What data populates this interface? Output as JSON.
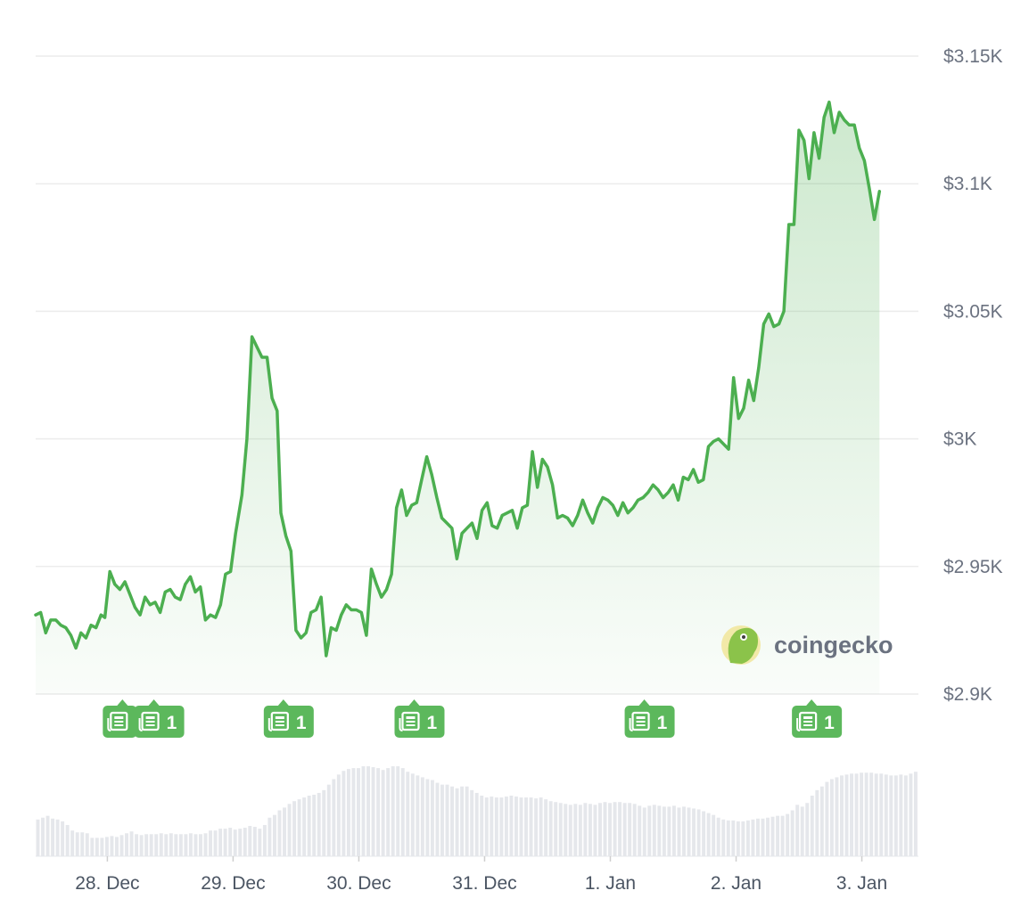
{
  "chart_data": {
    "type": "line",
    "y_axis": {
      "min": 2.9,
      "max": 3.15,
      "ticks": [
        {
          "value": 2.9,
          "label": "$2.9K"
        },
        {
          "value": 2.95,
          "label": "$2.95K"
        },
        {
          "value": 3.0,
          "label": "$3K"
        },
        {
          "value": 3.05,
          "label": "$3.05K"
        },
        {
          "value": 3.1,
          "label": "$3.1K"
        },
        {
          "value": 3.15,
          "label": "$3.15K"
        }
      ],
      "unit": "USD (thousands)",
      "position": "right"
    },
    "x_axis": {
      "start": -0.57,
      "end": 6.45,
      "ticks": [
        {
          "value": 0,
          "label": "28. Dec"
        },
        {
          "value": 1,
          "label": "29. Dec"
        },
        {
          "value": 2,
          "label": "30. Dec"
        },
        {
          "value": 3,
          "label": "31. Dec"
        },
        {
          "value": 4,
          "label": "1. Jan"
        },
        {
          "value": 5,
          "label": "2. Jan"
        },
        {
          "value": 6,
          "label": "3. Jan"
        }
      ]
    },
    "grid": "horizontal",
    "series": [
      {
        "color": "#4caf50",
        "fill": "gradient",
        "points": [
          [
            -0.57,
            2.931
          ],
          [
            -0.53,
            2.932
          ],
          [
            -0.49,
            2.924
          ],
          [
            -0.45,
            2.929
          ],
          [
            -0.41,
            2.929
          ],
          [
            -0.37,
            2.927
          ],
          [
            -0.33,
            2.926
          ],
          [
            -0.29,
            2.923
          ],
          [
            -0.25,
            2.918
          ],
          [
            -0.21,
            2.924
          ],
          [
            -0.17,
            2.922
          ],
          [
            -0.13,
            2.927
          ],
          [
            -0.09,
            2.926
          ],
          [
            -0.05,
            2.931
          ],
          [
            -0.02,
            2.93
          ],
          [
            0.02,
            2.948
          ],
          [
            0.06,
            2.943
          ],
          [
            0.1,
            2.941
          ],
          [
            0.14,
            2.944
          ],
          [
            0.18,
            2.939
          ],
          [
            0.22,
            2.934
          ],
          [
            0.26,
            2.931
          ],
          [
            0.3,
            2.938
          ],
          [
            0.34,
            2.935
          ],
          [
            0.38,
            2.936
          ],
          [
            0.42,
            2.932
          ],
          [
            0.46,
            2.94
          ],
          [
            0.5,
            2.941
          ],
          [
            0.54,
            2.938
          ],
          [
            0.58,
            2.937
          ],
          [
            0.62,
            2.943
          ],
          [
            0.66,
            2.946
          ],
          [
            0.7,
            2.94
          ],
          [
            0.74,
            2.942
          ],
          [
            0.78,
            2.929
          ],
          [
            0.82,
            2.931
          ],
          [
            0.86,
            2.93
          ],
          [
            0.9,
            2.935
          ],
          [
            0.94,
            2.947
          ],
          [
            0.98,
            2.948
          ],
          [
            1.02,
            2.963
          ],
          [
            1.07,
            2.978
          ],
          [
            1.11,
            3.0
          ],
          [
            1.15,
            3.04
          ],
          [
            1.19,
            3.036
          ],
          [
            1.23,
            3.032
          ],
          [
            1.27,
            3.032
          ],
          [
            1.31,
            3.016
          ],
          [
            1.35,
            3.011
          ],
          [
            1.38,
            2.971
          ],
          [
            1.42,
            2.962
          ],
          [
            1.46,
            2.956
          ],
          [
            1.5,
            2.925
          ],
          [
            1.54,
            2.922
          ],
          [
            1.58,
            2.924
          ],
          [
            1.62,
            2.932
          ],
          [
            1.66,
            2.933
          ],
          [
            1.7,
            2.938
          ],
          [
            1.74,
            2.915
          ],
          [
            1.78,
            2.926
          ],
          [
            1.82,
            2.925
          ],
          [
            1.86,
            2.931
          ],
          [
            1.9,
            2.935
          ],
          [
            1.94,
            2.933
          ],
          [
            1.98,
            2.933
          ],
          [
            2.02,
            2.932
          ],
          [
            2.06,
            2.923
          ],
          [
            2.1,
            2.949
          ],
          [
            2.14,
            2.943
          ],
          [
            2.18,
            2.938
          ],
          [
            2.22,
            2.941
          ],
          [
            2.26,
            2.947
          ],
          [
            2.3,
            2.973
          ],
          [
            2.34,
            2.98
          ],
          [
            2.38,
            2.97
          ],
          [
            2.42,
            2.974
          ],
          [
            2.46,
            2.975
          ],
          [
            2.5,
            2.984
          ],
          [
            2.54,
            2.993
          ],
          [
            2.58,
            2.986
          ],
          [
            2.62,
            2.977
          ],
          [
            2.66,
            2.969
          ],
          [
            2.7,
            2.967
          ],
          [
            2.74,
            2.965
          ],
          [
            2.78,
            2.953
          ],
          [
            2.82,
            2.963
          ],
          [
            2.86,
            2.965
          ],
          [
            2.9,
            2.967
          ],
          [
            2.94,
            2.961
          ],
          [
            2.98,
            2.972
          ],
          [
            3.02,
            2.975
          ],
          [
            3.06,
            2.966
          ],
          [
            3.1,
            2.965
          ],
          [
            3.14,
            2.97
          ],
          [
            3.18,
            2.971
          ],
          [
            3.22,
            2.972
          ],
          [
            3.26,
            2.965
          ],
          [
            3.3,
            2.973
          ],
          [
            3.34,
            2.974
          ],
          [
            3.38,
            2.995
          ],
          [
            3.42,
            2.981
          ],
          [
            3.46,
            2.992
          ],
          [
            3.5,
            2.989
          ],
          [
            3.54,
            2.982
          ],
          [
            3.58,
            2.969
          ],
          [
            3.62,
            2.97
          ],
          [
            3.66,
            2.969
          ],
          [
            3.7,
            2.966
          ],
          [
            3.74,
            2.97
          ],
          [
            3.78,
            2.976
          ],
          [
            3.82,
            2.971
          ],
          [
            3.86,
            2.967
          ],
          [
            3.9,
            2.973
          ],
          [
            3.94,
            2.977
          ],
          [
            3.98,
            2.976
          ],
          [
            4.02,
            2.974
          ],
          [
            4.06,
            2.97
          ],
          [
            4.1,
            2.975
          ],
          [
            4.14,
            2.971
          ],
          [
            4.18,
            2.973
          ],
          [
            4.22,
            2.976
          ],
          [
            4.26,
            2.977
          ],
          [
            4.3,
            2.979
          ],
          [
            4.34,
            2.982
          ],
          [
            4.38,
            2.98
          ],
          [
            4.42,
            2.977
          ],
          [
            4.46,
            2.979
          ],
          [
            4.5,
            2.982
          ],
          [
            4.54,
            2.976
          ],
          [
            4.58,
            2.985
          ],
          [
            4.62,
            2.984
          ],
          [
            4.66,
            2.988
          ],
          [
            4.7,
            2.983
          ],
          [
            4.74,
            2.984
          ],
          [
            4.78,
            2.997
          ],
          [
            4.82,
            2.999
          ],
          [
            4.86,
            3.0
          ],
          [
            4.9,
            2.998
          ],
          [
            4.94,
            2.996
          ],
          [
            4.98,
            3.024
          ],
          [
            5.02,
            3.008
          ],
          [
            5.06,
            3.012
          ],
          [
            5.1,
            3.023
          ],
          [
            5.14,
            3.015
          ],
          [
            5.18,
            3.028
          ],
          [
            5.22,
            3.045
          ],
          [
            5.26,
            3.049
          ],
          [
            5.3,
            3.044
          ],
          [
            5.34,
            3.045
          ],
          [
            5.38,
            3.05
          ],
          [
            5.42,
            3.084
          ],
          [
            5.46,
            3.084
          ],
          [
            5.5,
            3.121
          ],
          [
            5.54,
            3.117
          ],
          [
            5.58,
            3.102
          ],
          [
            5.62,
            3.12
          ],
          [
            5.66,
            3.11
          ],
          [
            5.7,
            3.126
          ],
          [
            5.74,
            3.132
          ],
          [
            5.78,
            3.12
          ],
          [
            5.82,
            3.128
          ],
          [
            5.86,
            3.125
          ],
          [
            5.9,
            3.123
          ],
          [
            5.94,
            3.123
          ],
          [
            5.98,
            3.114
          ],
          [
            6.02,
            3.109
          ],
          [
            6.06,
            3.098
          ],
          [
            6.1,
            3.086
          ],
          [
            6.14,
            3.097
          ]
        ]
      }
    ],
    "news_markers": [
      {
        "x": 0.12,
        "count": ""
      },
      {
        "x": 0.37,
        "count": "1"
      },
      {
        "x": 1.4,
        "count": "1"
      },
      {
        "x": 2.44,
        "count": "1"
      },
      {
        "x": 4.27,
        "count": "1"
      },
      {
        "x": 5.6,
        "count": "1"
      }
    ],
    "volume": {
      "color": "#e5e7eb",
      "values": [
        0.4,
        0.42,
        0.44,
        0.41,
        0.4,
        0.38,
        0.34,
        0.28,
        0.26,
        0.26,
        0.25,
        0.2,
        0.2,
        0.2,
        0.21,
        0.22,
        0.21,
        0.23,
        0.25,
        0.27,
        0.24,
        0.23,
        0.24,
        0.24,
        0.24,
        0.25,
        0.24,
        0.25,
        0.24,
        0.24,
        0.24,
        0.25,
        0.24,
        0.24,
        0.25,
        0.28,
        0.28,
        0.3,
        0.3,
        0.31,
        0.29,
        0.3,
        0.31,
        0.33,
        0.32,
        0.3,
        0.34,
        0.42,
        0.45,
        0.5,
        0.53,
        0.57,
        0.6,
        0.62,
        0.64,
        0.66,
        0.67,
        0.69,
        0.72,
        0.78,
        0.84,
        0.89,
        0.93,
        0.95,
        0.96,
        0.96,
        0.98,
        0.98,
        0.97,
        0.96,
        0.94,
        0.96,
        0.98,
        0.98,
        0.96,
        0.92,
        0.9,
        0.88,
        0.86,
        0.84,
        0.83,
        0.8,
        0.78,
        0.78,
        0.76,
        0.74,
        0.76,
        0.76,
        0.72,
        0.69,
        0.66,
        0.64,
        0.65,
        0.64,
        0.64,
        0.65,
        0.66,
        0.65,
        0.64,
        0.64,
        0.64,
        0.63,
        0.64,
        0.62,
        0.6,
        0.59,
        0.58,
        0.57,
        0.56,
        0.57,
        0.56,
        0.58,
        0.57,
        0.56,
        0.58,
        0.59,
        0.58,
        0.59,
        0.59,
        0.58,
        0.58,
        0.57,
        0.55,
        0.53,
        0.55,
        0.56,
        0.55,
        0.54,
        0.54,
        0.55,
        0.53,
        0.54,
        0.53,
        0.52,
        0.51,
        0.49,
        0.47,
        0.45,
        0.42,
        0.4,
        0.39,
        0.39,
        0.38,
        0.38,
        0.39,
        0.4,
        0.41,
        0.41,
        0.42,
        0.43,
        0.44,
        0.44,
        0.46,
        0.5,
        0.56,
        0.54,
        0.58,
        0.66,
        0.72,
        0.76,
        0.81,
        0.84,
        0.86,
        0.88,
        0.89,
        0.9,
        0.9,
        0.91,
        0.91,
        0.91,
        0.9,
        0.9,
        0.89,
        0.88,
        0.88,
        0.89,
        0.88,
        0.9,
        0.92
      ]
    }
  },
  "watermark": {
    "brand_text": "coingecko",
    "logo_icon": "gecko-logo-icon"
  }
}
